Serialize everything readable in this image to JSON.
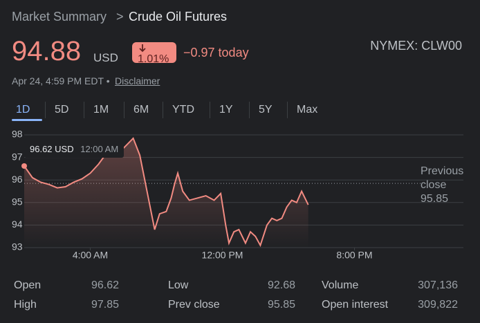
{
  "header": {
    "breadcrumb": "Market Summary",
    "separator": ">",
    "title": "Crude Oil Futures",
    "price": "94.88",
    "currency": "USD",
    "change_percent": "1.01%",
    "change_today": "−0.97 today",
    "exchange": "NYMEX: CLW00",
    "timestamp": "Apr 24, 4:59 PM EDT •",
    "disclaimer": "Disclaimer"
  },
  "tabs": [
    "1D",
    "5D",
    "1M",
    "6M",
    "YTD",
    "1Y",
    "5Y",
    "Max"
  ],
  "stats": [
    [
      {
        "label": "Open",
        "value": "96.62"
      },
      {
        "label": "Low",
        "value": "92.68"
      },
      {
        "label": "Volume",
        "value": "307,136"
      }
    ],
    [
      {
        "label": "High",
        "value": "97.85"
      },
      {
        "label": "Prev close",
        "value": "95.85"
      },
      {
        "label": "Open interest",
        "value": "309,822"
      }
    ]
  ],
  "chart_data": {
    "type": "line",
    "xlim": [
      0,
      24
    ],
    "xticks": [
      {
        "value": 4,
        "label": "4:00 AM"
      },
      {
        "value": 12,
        "label": "12:00 PM"
      },
      {
        "value": 20,
        "label": "8:00 PM"
      }
    ],
    "ylim": [
      93,
      98
    ],
    "yticks": [
      93,
      94,
      95,
      96,
      97,
      98
    ],
    "grid": true,
    "previous_close": {
      "label": "Previous close",
      "value": 95.85
    },
    "tooltip": {
      "price": "96.62 USD",
      "time": "12:00 AM"
    },
    "series": [
      {
        "color": "#f28b82",
        "x": [
          0,
          0.5,
          1,
          1.5,
          2,
          2.5,
          3,
          3.5,
          4,
          4.5,
          5,
          5.5,
          6,
          6.6,
          7,
          7.3,
          7.6,
          7.9,
          8.2,
          8.6,
          8.9,
          9.1,
          9.3,
          9.6,
          10,
          10.5,
          11,
          11.5,
          11.9,
          12.2,
          12.4,
          12.7,
          13,
          13.4,
          13.7,
          14,
          14.3,
          14.7,
          15,
          15.3,
          15.6,
          15.9,
          16.2,
          16.5,
          16.8,
          17,
          17.2
        ],
        "values": [
          96.62,
          96.1,
          95.9,
          95.8,
          95.65,
          95.7,
          95.9,
          96.05,
          96.3,
          96.7,
          97.2,
          97.4,
          97.4,
          97.85,
          97.1,
          96.0,
          94.9,
          93.8,
          94.5,
          94.6,
          95.2,
          95.8,
          96.3,
          95.5,
          95.1,
          95.2,
          95.3,
          95.1,
          95.4,
          94.0,
          93.2,
          93.7,
          93.8,
          93.2,
          93.7,
          93.5,
          93.1,
          94.0,
          94.3,
          94.2,
          94.3,
          94.8,
          95.1,
          95.0,
          95.5,
          95.2,
          94.9
        ]
      }
    ]
  }
}
